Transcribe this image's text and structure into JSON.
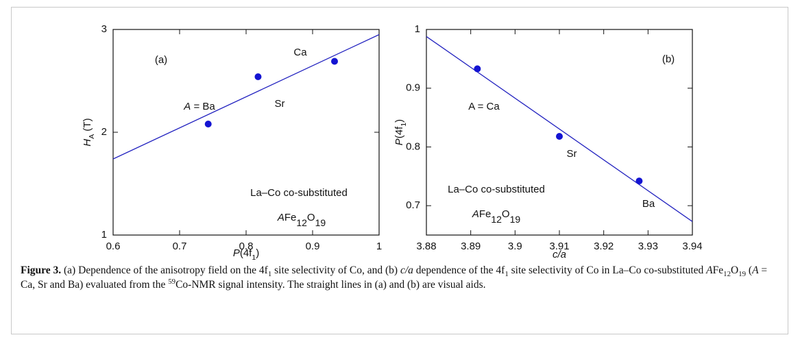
{
  "chart_data": [
    {
      "type": "scatter",
      "x": [
        0.743,
        0.818,
        0.933
      ],
      "y": [
        2.08,
        2.54,
        2.69
      ],
      "color": "#1414d2",
      "xlim": [
        0.6,
        1
      ],
      "ylim": [
        1,
        3
      ],
      "xticks": [
        0.6,
        0.7,
        0.8,
        0.9,
        1
      ],
      "yticks": [
        1,
        2,
        3
      ],
      "xlabel": [
        {
          "text": "P",
          "style": "italic"
        },
        {
          "text": "(4f"
        },
        {
          "text": "1",
          "style": "sub"
        },
        {
          "text": ")"
        }
      ],
      "ylabel": [
        {
          "text": "H",
          "style": "italic"
        },
        {
          "text": "A",
          "style": "sub"
        },
        {
          "text": " (T)"
        }
      ],
      "trend_line": {
        "x": [
          0.6,
          1
        ],
        "y": [
          1.74,
          2.95
        ],
        "color": "#2424c0"
      },
      "annotations": [
        [
          {
            "text": "(a)"
          }
        ],
        [
          {
            "text": "Ca"
          }
        ],
        [
          {
            "text": "Sr"
          }
        ],
        [
          {
            "text": "A",
            "style": "italic"
          },
          {
            "text": " = Ba"
          }
        ],
        [
          {
            "text": "La–Co co-substituted"
          }
        ],
        [
          {
            "text": "A",
            "style": "italic"
          },
          {
            "text": "Fe"
          },
          {
            "text": "12",
            "style": "sub"
          },
          {
            "text": "O"
          },
          {
            "text": "19",
            "style": "sub"
          }
        ]
      ]
    },
    {
      "type": "scatter",
      "x": [
        3.8915,
        3.91,
        3.928
      ],
      "y": [
        0.933,
        0.818,
        0.742
      ],
      "color": "#1414d2",
      "xlim": [
        3.88,
        3.94
      ],
      "ylim": [
        0.65,
        1
      ],
      "xticks": [
        3.88,
        3.89,
        3.9,
        3.91,
        3.92,
        3.93,
        3.94
      ],
      "yticks": [
        0.7,
        0.8,
        0.9,
        1
      ],
      "xlabel": [
        {
          "text": "c/a",
          "style": "italic"
        }
      ],
      "ylabel": [
        {
          "text": "P",
          "style": "italic"
        },
        {
          "text": "(4f"
        },
        {
          "text": "1",
          "style": "sub"
        },
        {
          "text": ")"
        }
      ],
      "trend_line": {
        "x": [
          3.88,
          3.94
        ],
        "y": [
          0.988,
          0.673
        ],
        "color": "#2424c0"
      },
      "annotations": [
        [
          {
            "text": "(b)"
          }
        ],
        [
          {
            "text": "A = Ca"
          }
        ],
        [
          {
            "text": "Sr"
          }
        ],
        [
          {
            "text": "Ba"
          }
        ],
        [
          {
            "text": "La–Co co-substituted"
          }
        ],
        [
          {
            "text": "A",
            "style": "italic"
          },
          {
            "text": "Fe"
          },
          {
            "text": "12",
            "style": "sub"
          },
          {
            "text": "O"
          },
          {
            "text": "19",
            "style": "sub"
          }
        ]
      ]
    }
  ],
  "caption": [
    {
      "text": "Figure 3.",
      "style": "bold"
    },
    {
      "text": " (a) Dependence of the anisotropy field on the 4f"
    },
    {
      "text": "1",
      "style": "sub"
    },
    {
      "text": " site selectivity of Co, and (b) "
    },
    {
      "text": "c/a",
      "style": "italic"
    },
    {
      "text": " dependence of the 4f"
    },
    {
      "text": "1",
      "style": "sub"
    },
    {
      "text": " site selectivity of Co in La–Co co-substituted "
    },
    {
      "text": "A",
      "style": "italic"
    },
    {
      "text": "Fe"
    },
    {
      "text": "12",
      "style": "sub"
    },
    {
      "text": "O"
    },
    {
      "text": "19",
      "style": "sub"
    },
    {
      "text": " ("
    },
    {
      "text": "A",
      "style": "italic"
    },
    {
      "text": " = Ca, Sr and Ba) evaluated from the "
    },
    {
      "text": "59",
      "style": "sup"
    },
    {
      "text": "Co-NMR signal intensity. The straight lines in (a) and (b) are visual aids."
    }
  ]
}
